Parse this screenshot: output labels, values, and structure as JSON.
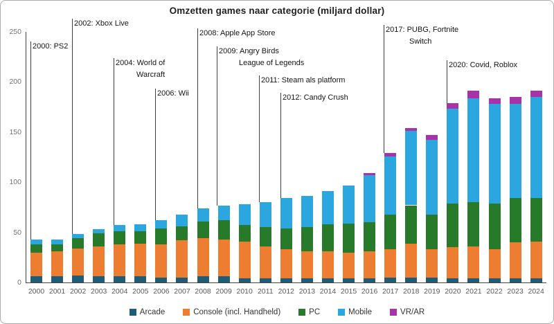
{
  "title": "Omzetten games naar categorie (miljard dollar)",
  "chart_data": {
    "type": "bar",
    "subtype": "stacked",
    "title": "Omzetten games naar categorie (miljard dollar)",
    "unit": "miljard dollar",
    "xlabel": "",
    "ylabel": "",
    "ylim": [
      0,
      250
    ],
    "yticks": [
      0,
      50,
      100,
      150,
      200,
      250
    ],
    "grid": false,
    "legend_position": "bottom",
    "categories": [
      2000,
      2001,
      2002,
      2003,
      2004,
      2005,
      2006,
      2007,
      2008,
      2009,
      2010,
      2011,
      2012,
      2013,
      2014,
      2015,
      2016,
      2017,
      2018,
      2019,
      2020,
      2021,
      2022,
      2023,
      2024
    ],
    "series": [
      {
        "name": "Arcade",
        "color": "#1F5C78",
        "values": [
          6,
          6,
          7,
          6,
          6,
          6,
          5,
          5,
          6,
          6,
          4,
          4,
          4,
          4,
          4,
          4,
          4,
          5,
          5,
          5,
          4,
          4,
          4,
          4,
          4
        ]
      },
      {
        "name": "Console (incl. Handheld)",
        "color": "#EC7D31",
        "values": [
          24,
          25,
          27,
          30,
          32,
          33,
          33,
          37,
          38,
          37,
          37,
          32,
          29,
          27,
          27,
          26,
          27,
          28,
          34,
          28,
          31,
          32,
          29,
          36,
          37
        ]
      },
      {
        "name": "PC",
        "color": "#267A29",
        "values": [
          8,
          7,
          10,
          13,
          13,
          12,
          16,
          14,
          17,
          19,
          16,
          19,
          21,
          24,
          27,
          29,
          29,
          35,
          38,
          35,
          44,
          44,
          46,
          44,
          43
        ]
      },
      {
        "name": "Mobile",
        "color": "#2BA6DE",
        "values": [
          5,
          5,
          4,
          4,
          6,
          7,
          8,
          12,
          13,
          15,
          21,
          25,
          30,
          31,
          33,
          38,
          47,
          58,
          74,
          74,
          94,
          104,
          99,
          94,
          101
        ]
      },
      {
        "name": "VR/AR",
        "color": "#A833A8",
        "values": [
          0,
          0,
          0,
          0,
          0,
          0,
          0,
          0,
          0,
          0,
          0,
          0,
          0,
          0,
          0,
          0,
          2,
          3,
          3,
          5,
          6,
          7,
          6,
          7,
          6
        ]
      }
    ],
    "annotations": [
      {
        "year": 2000,
        "line_x": 43,
        "text_top": 59,
        "lines": [
          {
            "text": "2000: PS2",
            "x": 46
          }
        ]
      },
      {
        "year": 2002,
        "line_x": 103,
        "text_top": 26,
        "lines": [
          {
            "text": "2002: Xbox Live",
            "x": 106
          }
        ]
      },
      {
        "year": 2004,
        "line_x": 163,
        "text_top": 83,
        "lines": [
          {
            "text": "2004: World of",
            "x": 166
          },
          {
            "text": "Warcraft",
            "x": 196
          }
        ]
      },
      {
        "year": 2006,
        "line_x": 223,
        "text_top": 127,
        "lines": [
          {
            "text": "2006: Wii",
            "x": 226
          }
        ]
      },
      {
        "year": 2008,
        "line_x": 284,
        "text_top": 40,
        "lines": [
          {
            "text": "2008: Apple App Store",
            "x": 287
          }
        ]
      },
      {
        "year": 2009,
        "line_x": 312,
        "text_top": 66,
        "lines": [
          {
            "text": "2009: Angry Birds",
            "x": 315
          },
          {
            "text": "League of Legends",
            "x": 344
          }
        ]
      },
      {
        "year": 2011,
        "line_x": 373,
        "text_top": 108,
        "lines": [
          {
            "text": "2011: Steam als platform",
            "x": 376
          }
        ]
      },
      {
        "year": 2012,
        "line_x": 404,
        "text_top": 133,
        "lines": [
          {
            "text": "2012: Candy Crush",
            "x": 407
          }
        ]
      },
      {
        "year": 2017,
        "line_x": 553,
        "text_top": 35,
        "lines": [
          {
            "text": "2017: PUBG, Fortnite",
            "x": 556
          },
          {
            "text": "Switch",
            "x": 590
          }
        ]
      },
      {
        "year": 2020,
        "line_x": 644,
        "text_top": 86,
        "lines": [
          {
            "text": "2020: Covid, Roblox",
            "x": 647
          }
        ]
      }
    ]
  }
}
